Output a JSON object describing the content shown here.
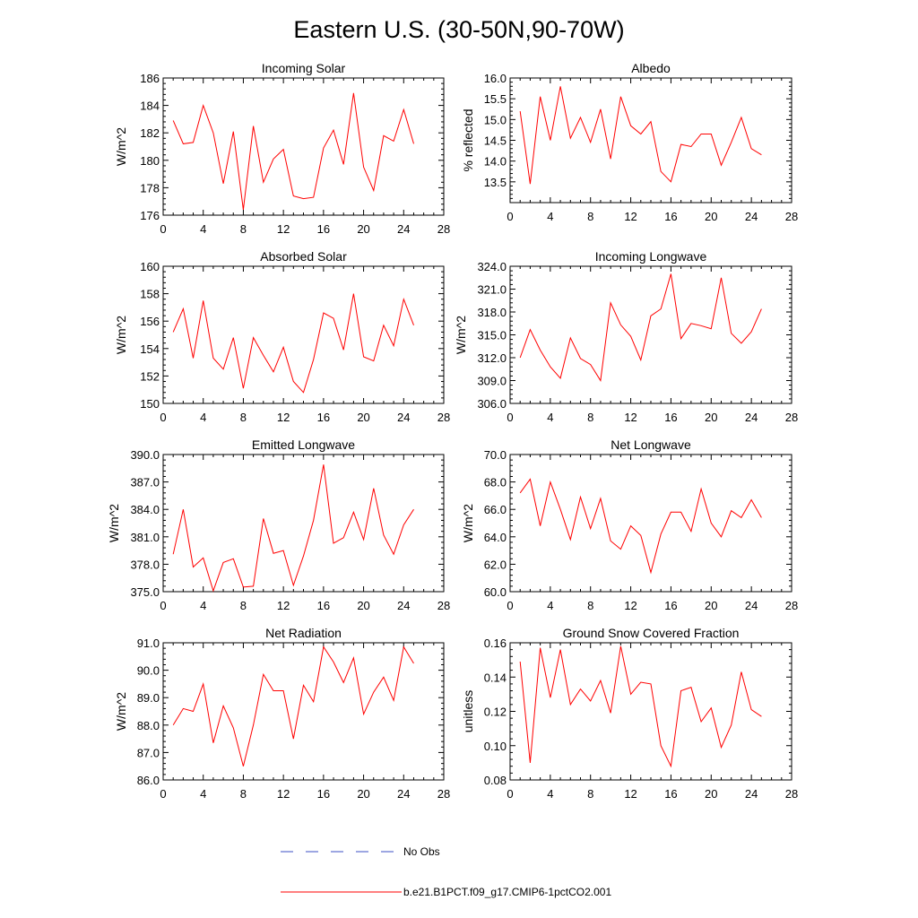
{
  "figure": {
    "title": "Eastern U.S. (30-50N,90-70W)",
    "legend": [
      {
        "label": "No Obs",
        "color": "#3b4fc4",
        "style": "dashed"
      },
      {
        "label": "b.e21.B1PCT.f09_g17.CMIP6-1pctCO2.001",
        "color": "#ff0000",
        "style": "solid"
      }
    ]
  },
  "chart_data": [
    {
      "type": "line",
      "title": "Incoming Solar",
      "ylabel": "W/m^2",
      "xlabel": "",
      "xlim": [
        0,
        28
      ],
      "xticks": [
        "0",
        "4",
        "8",
        "12",
        "16",
        "20",
        "24",
        "28"
      ],
      "ylim": [
        176,
        186
      ],
      "yticks": [
        "176",
        "178",
        "180",
        "182",
        "184",
        "186"
      ],
      "series": [
        {
          "name": "b.e21.B1PCT.f09_g17.CMIP6-1pctCO2.001",
          "color": "#ff0000",
          "x": [
            1,
            2,
            3,
            4,
            5,
            6,
            7,
            8,
            9,
            10,
            11,
            12,
            13,
            14,
            15,
            16,
            17,
            18,
            19,
            20,
            21,
            22,
            23,
            24,
            25
          ],
          "y": [
            182.9,
            181.2,
            181.3,
            184.0,
            182.0,
            178.3,
            182.1,
            176.4,
            182.5,
            178.4,
            180.1,
            180.8,
            177.4,
            177.2,
            177.3,
            180.9,
            182.2,
            179.7,
            184.9,
            179.5,
            177.8,
            181.8,
            181.4,
            183.7,
            181.2
          ]
        }
      ]
    },
    {
      "type": "line",
      "title": "Albedo",
      "ylabel": "% reflected",
      "xlabel": "",
      "xlim": [
        0,
        28
      ],
      "xticks": [
        "0",
        "4",
        "8",
        "12",
        "16",
        "20",
        "24",
        "28"
      ],
      "ylim": [
        13.0,
        16.0
      ],
      "yticks": [
        "13.5",
        "14.0",
        "14.5",
        "15.0",
        "15.5",
        "16.0"
      ],
      "series": [
        {
          "name": "b.e21.B1PCT.f09_g17.CMIP6-1pctCO2.001",
          "color": "#ff0000",
          "x": [
            1,
            2,
            3,
            4,
            5,
            6,
            7,
            8,
            9,
            10,
            11,
            12,
            13,
            14,
            15,
            16,
            17,
            18,
            19,
            20,
            21,
            22,
            23,
            24,
            25
          ],
          "y": [
            15.2,
            13.45,
            15.55,
            14.5,
            15.8,
            14.55,
            15.05,
            14.45,
            15.25,
            14.05,
            15.55,
            14.85,
            14.65,
            14.95,
            13.75,
            13.5,
            14.4,
            14.35,
            14.65,
            14.65,
            13.9,
            14.45,
            15.05,
            14.3,
            14.15
          ]
        }
      ]
    },
    {
      "type": "line",
      "title": "Absorbed Solar",
      "ylabel": "W/m^2",
      "xlabel": "",
      "xlim": [
        0,
        28
      ],
      "xticks": [
        "0",
        "4",
        "8",
        "12",
        "16",
        "20",
        "24",
        "28"
      ],
      "ylim": [
        150,
        160
      ],
      "yticks": [
        "150",
        "152",
        "154",
        "156",
        "158",
        "160"
      ],
      "series": [
        {
          "name": "b.e21.B1PCT.f09_g17.CMIP6-1pctCO2.001",
          "color": "#ff0000",
          "x": [
            1,
            2,
            3,
            4,
            5,
            6,
            7,
            8,
            9,
            10,
            11,
            12,
            13,
            14,
            15,
            16,
            17,
            18,
            19,
            20,
            21,
            22,
            23,
            24,
            25
          ],
          "y": [
            155.2,
            156.9,
            153.3,
            157.5,
            153.3,
            152.5,
            154.8,
            151.1,
            154.8,
            153.5,
            152.3,
            154.1,
            151.6,
            150.8,
            153.2,
            156.6,
            156.2,
            153.9,
            158.0,
            153.4,
            153.1,
            155.7,
            154.2,
            157.6,
            155.7
          ]
        }
      ]
    },
    {
      "type": "line",
      "title": "Incoming Longwave",
      "ylabel": "W/m^2",
      "xlabel": "",
      "xlim": [
        0,
        28
      ],
      "xticks": [
        "0",
        "4",
        "8",
        "12",
        "16",
        "20",
        "24",
        "28"
      ],
      "ylim": [
        306.0,
        324.0
      ],
      "yticks": [
        "306.0",
        "309.0",
        "312.0",
        "315.0",
        "318.0",
        "321.0",
        "324.0"
      ],
      "series": [
        {
          "name": "b.e21.B1PCT.f09_g17.CMIP6-1pctCO2.001",
          "color": "#ff0000",
          "x": [
            1,
            2,
            3,
            4,
            5,
            6,
            7,
            8,
            9,
            10,
            11,
            12,
            13,
            14,
            15,
            16,
            17,
            18,
            19,
            20,
            21,
            22,
            23,
            24,
            25
          ],
          "y": [
            312.0,
            315.7,
            313.0,
            310.8,
            309.3,
            314.6,
            311.9,
            311.1,
            309.0,
            319.2,
            316.3,
            314.8,
            311.7,
            317.5,
            318.4,
            323.0,
            314.5,
            316.5,
            316.2,
            315.8,
            322.5,
            315.2,
            313.9,
            315.4,
            318.4
          ]
        }
      ]
    },
    {
      "type": "line",
      "title": "Emitted Longwave",
      "ylabel": "W/m^2",
      "xlabel": "",
      "xlim": [
        0,
        28
      ],
      "xticks": [
        "0",
        "4",
        "8",
        "12",
        "16",
        "20",
        "24",
        "28"
      ],
      "ylim": [
        375.0,
        390.0
      ],
      "yticks": [
        "375.0",
        "378.0",
        "381.0",
        "384.0",
        "387.0",
        "390.0"
      ],
      "series": [
        {
          "name": "b.e21.B1PCT.f09_g17.CMIP6-1pctCO2.001",
          "color": "#ff0000",
          "x": [
            1,
            2,
            3,
            4,
            5,
            6,
            7,
            8,
            9,
            10,
            11,
            12,
            13,
            14,
            15,
            16,
            17,
            18,
            19,
            20,
            21,
            22,
            23,
            24,
            25
          ],
          "y": [
            379.1,
            384.0,
            377.7,
            378.7,
            375.1,
            378.2,
            378.6,
            375.5,
            375.6,
            383.0,
            379.2,
            379.5,
            375.7,
            378.9,
            382.8,
            388.9,
            380.3,
            380.9,
            383.7,
            380.7,
            386.3,
            381.2,
            379.1,
            382.3,
            384.0
          ]
        }
      ]
    },
    {
      "type": "line",
      "title": "Net Longwave",
      "ylabel": "W/m^2",
      "xlabel": "",
      "xlim": [
        0,
        28
      ],
      "xticks": [
        "0",
        "4",
        "8",
        "12",
        "16",
        "20",
        "24",
        "28"
      ],
      "ylim": [
        60.0,
        70.0
      ],
      "yticks": [
        "60.0",
        "62.0",
        "64.0",
        "66.0",
        "68.0",
        "70.0"
      ],
      "series": [
        {
          "name": "b.e21.B1PCT.f09_g17.CMIP6-1pctCO2.001",
          "color": "#ff0000",
          "x": [
            1,
            2,
            3,
            4,
            5,
            6,
            7,
            8,
            9,
            10,
            11,
            12,
            13,
            14,
            15,
            16,
            17,
            18,
            19,
            20,
            21,
            22,
            23,
            24,
            25
          ],
          "y": [
            67.2,
            68.2,
            64.8,
            68.0,
            66.0,
            63.8,
            66.9,
            64.6,
            66.8,
            63.7,
            63.1,
            64.8,
            64.1,
            61.4,
            64.2,
            65.8,
            65.8,
            64.4,
            67.5,
            65.0,
            64.0,
            65.9,
            65.4,
            66.7,
            65.4
          ]
        }
      ]
    },
    {
      "type": "line",
      "title": "Net Radiation",
      "ylabel": "W/m^2",
      "xlabel": "",
      "xlim": [
        0,
        28
      ],
      "xticks": [
        "0",
        "4",
        "8",
        "12",
        "16",
        "20",
        "24",
        "28"
      ],
      "ylim": [
        86.0,
        91.0
      ],
      "yticks": [
        "86.0",
        "87.0",
        "88.0",
        "89.0",
        "90.0",
        "91.0"
      ],
      "series": [
        {
          "name": "b.e21.B1PCT.f09_g17.CMIP6-1pctCO2.001",
          "color": "#ff0000",
          "x": [
            1,
            2,
            3,
            4,
            5,
            6,
            7,
            8,
            9,
            10,
            11,
            12,
            13,
            14,
            15,
            16,
            17,
            18,
            19,
            20,
            21,
            22,
            23,
            24,
            25
          ],
          "y": [
            88.0,
            88.6,
            88.5,
            89.5,
            87.35,
            88.7,
            87.9,
            86.5,
            88.0,
            89.85,
            89.25,
            89.25,
            87.5,
            89.45,
            88.85,
            90.85,
            90.3,
            89.55,
            90.45,
            88.4,
            89.2,
            89.75,
            88.9,
            90.85,
            90.25
          ]
        }
      ]
    },
    {
      "type": "line",
      "title": "Ground Snow Covered Fraction",
      "ylabel": "unitless",
      "xlabel": "",
      "xlim": [
        0,
        28
      ],
      "xticks": [
        "0",
        "4",
        "8",
        "12",
        "16",
        "20",
        "24",
        "28"
      ],
      "ylim": [
        0.08,
        0.16
      ],
      "yticks": [
        "0.08",
        "0.10",
        "0.12",
        "0.14",
        "0.16"
      ],
      "series": [
        {
          "name": "b.e21.B1PCT.f09_g17.CMIP6-1pctCO2.001",
          "color": "#ff0000",
          "x": [
            1,
            2,
            3,
            4,
            5,
            6,
            7,
            8,
            9,
            10,
            11,
            12,
            13,
            14,
            15,
            16,
            17,
            18,
            19,
            20,
            21,
            22,
            23,
            24,
            25
          ],
          "y": [
            0.149,
            0.09,
            0.157,
            0.128,
            0.156,
            0.124,
            0.133,
            0.126,
            0.138,
            0.119,
            0.158,
            0.13,
            0.137,
            0.136,
            0.1,
            0.088,
            0.132,
            0.134,
            0.114,
            0.122,
            0.099,
            0.112,
            0.143,
            0.121,
            0.117
          ]
        }
      ]
    }
  ]
}
